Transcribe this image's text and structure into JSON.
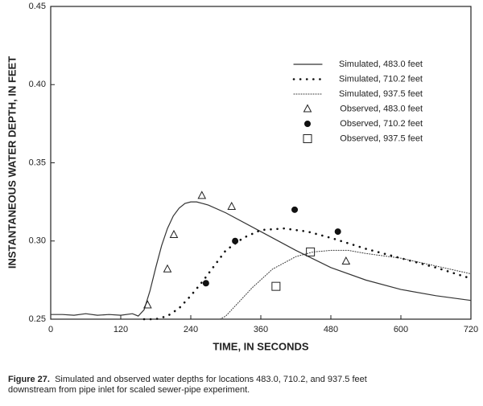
{
  "chart_data": {
    "type": "line",
    "xlabel": "TIME, IN SECONDS",
    "ylabel": "INSTANTANEOUS WATER DEPTH, IN FEET",
    "xlim": [
      0,
      720
    ],
    "xticks": [
      0,
      120,
      240,
      360,
      480,
      600,
      720
    ],
    "ylim": [
      0.25,
      0.45
    ],
    "yticks": [
      0.25,
      {
        "value": 0.3,
        "label": "0.30"
      },
      0.35,
      {
        "value": 0.4,
        "label": "0.40"
      },
      0.45
    ],
    "series": [
      {
        "name": "Simulated, 483.0 feet",
        "color": "#333333",
        "style": "solid",
        "x": [
          0,
          20,
          40,
          60,
          80,
          100,
          120,
          140,
          150,
          160,
          170,
          180,
          190,
          200,
          210,
          220,
          230,
          240,
          250,
          260,
          270,
          300,
          360,
          420,
          480,
          540,
          600,
          660,
          720
        ],
        "values": [
          0.253,
          0.253,
          0.2525,
          0.2535,
          0.2525,
          0.253,
          0.2525,
          0.2535,
          0.252,
          0.256,
          0.268,
          0.283,
          0.297,
          0.308,
          0.316,
          0.321,
          0.324,
          0.325,
          0.325,
          0.324,
          0.323,
          0.318,
          0.306,
          0.294,
          0.283,
          0.275,
          0.269,
          0.265,
          0.262
        ]
      },
      {
        "name": "Simulated, 710.2 feet",
        "color": "#111111",
        "style": "dotted",
        "x": [
          160,
          180,
          200,
          220,
          240,
          260,
          280,
          300,
          330,
          360,
          400,
          440,
          480,
          540,
          600,
          660,
          720
        ],
        "values": [
          0.25,
          0.25,
          0.252,
          0.257,
          0.265,
          0.274,
          0.284,
          0.294,
          0.302,
          0.307,
          0.308,
          0.306,
          0.302,
          0.295,
          0.289,
          0.283,
          0.276
        ]
      },
      {
        "name": "Simulated, 937.5 feet",
        "color": "#333333",
        "style": "fine",
        "x": [
          290,
          300,
          320,
          345,
          380,
          420,
          450,
          480,
          510,
          540,
          600,
          660,
          720
        ],
        "values": [
          0.25,
          0.252,
          0.26,
          0.27,
          0.282,
          0.29,
          0.293,
          0.294,
          0.294,
          0.292,
          0.289,
          0.284,
          0.279
        ]
      },
      {
        "name": "Observed, 483.0 feet",
        "color": "#222222",
        "marker": "triangle",
        "x": [
          166,
          200,
          211,
          259,
          310,
          506
        ],
        "values": [
          0.259,
          0.282,
          0.304,
          0.329,
          0.322,
          0.287
        ]
      },
      {
        "name": "Observed, 710.2 feet",
        "color": "#111111",
        "marker": "circle",
        "x": [
          266,
          316,
          418,
          492
        ],
        "values": [
          0.273,
          0.3,
          0.32,
          0.306
        ]
      },
      {
        "name": "Observed, 937.5 feet",
        "color": "#222222",
        "marker": "square",
        "x": [
          386,
          445
        ],
        "values": [
          0.271,
          0.293
        ]
      }
    ]
  },
  "caption": {
    "label": "Figure 27.",
    "text": "Simulated and observed water depths for locations 483.0, 710.2, and 937.5 feet downstream from pipe inlet for scaled sewer-pipe experiment."
  }
}
